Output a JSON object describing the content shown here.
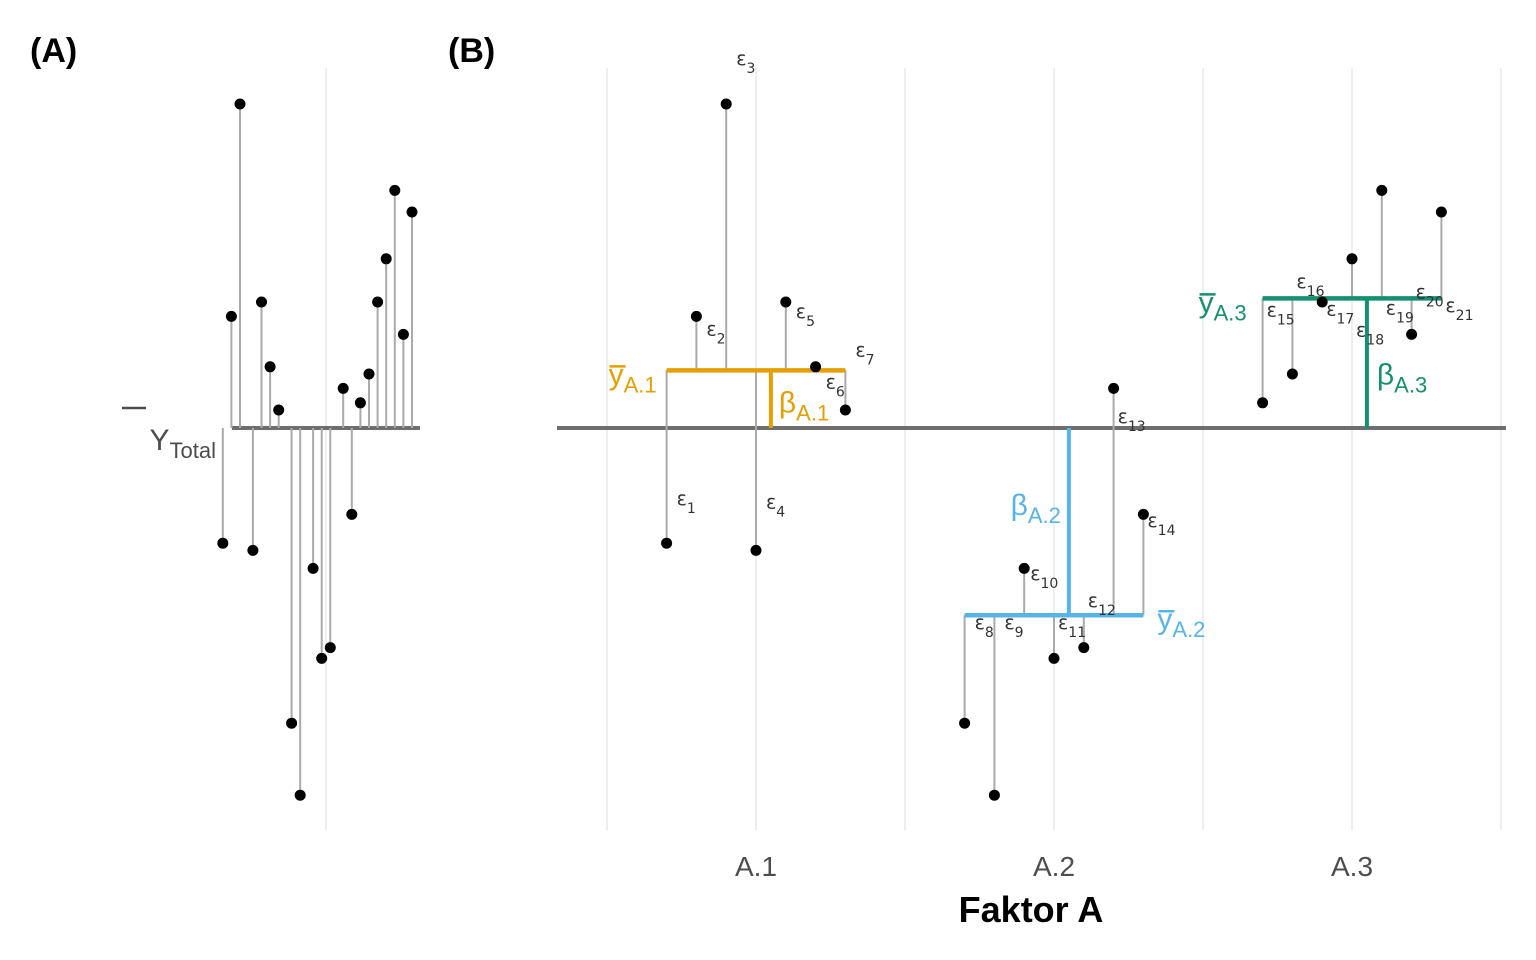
{
  "panels": {
    "a_label": "(A)",
    "b_label": "(B)"
  },
  "colors": {
    "stem": "#aaaaaa",
    "baseline": "#6e6e6e",
    "grid": "#e8e8e8",
    "point": "#000000",
    "A.1": "#e69f00",
    "A.2": "#56b4e9",
    "A.3": "#159070"
  },
  "chart_data": [
    {
      "panel": "A",
      "type": "scatter",
      "baseline_label": {
        "main": "Y",
        "sub": "Total"
      },
      "baseline_y": 0,
      "ylim": [
        -5.5,
        4.5
      ],
      "points": [
        {
          "x": -1.2,
          "y": -1.6
        },
        {
          "x": -1.1,
          "y": 1.55
        },
        {
          "x": -1.0,
          "y": 4.5
        },
        {
          "x": -0.85,
          "y": -1.7
        },
        {
          "x": -0.75,
          "y": 1.75
        },
        {
          "x": -0.65,
          "y": 0.85
        },
        {
          "x": -0.55,
          "y": 0.25
        },
        {
          "x": -0.4,
          "y": -4.1
        },
        {
          "x": -0.3,
          "y": -5.1
        },
        {
          "x": -0.15,
          "y": -1.95
        },
        {
          "x": -0.05,
          "y": -3.2
        },
        {
          "x": 0.05,
          "y": -3.05
        },
        {
          "x": 0.2,
          "y": 0.55
        },
        {
          "x": 0.3,
          "y": -1.2
        },
        {
          "x": 0.4,
          "y": 0.35
        },
        {
          "x": 0.5,
          "y": 0.75
        },
        {
          "x": 0.6,
          "y": 1.75
        },
        {
          "x": 0.7,
          "y": 2.35
        },
        {
          "x": 0.8,
          "y": 3.3
        },
        {
          "x": 0.9,
          "y": 1.3
        },
        {
          "x": 1.0,
          "y": 3.0
        }
      ]
    },
    {
      "panel": "B",
      "type": "scatter",
      "xlabel": "Faktor A",
      "categories": [
        "A.1",
        "A.2",
        "A.3"
      ],
      "baseline_y": 0,
      "ylim": [
        -5.5,
        4.5
      ],
      "groups": [
        {
          "name": "A.1",
          "mean_label": {
            "main": "y",
            "sub": "A.1"
          },
          "effect_label": {
            "main": "β",
            "sub": "A.1"
          },
          "mean": 0.8,
          "mean_x_range": [
            0.07,
            0.13
          ],
          "effect_x": 0.105,
          "points": [
            {
              "x": 0.07,
              "y": -1.6,
              "label": "ε",
              "sub": "1"
            },
            {
              "x": 0.08,
              "y": 1.55,
              "label": "ε",
              "sub": "2"
            },
            {
              "x": 0.09,
              "y": 4.5,
              "label": "ε",
              "sub": "3"
            },
            {
              "x": 0.1,
              "y": -1.7,
              "label": "ε",
              "sub": "4"
            },
            {
              "x": 0.11,
              "y": 1.75,
              "label": "ε",
              "sub": "5"
            },
            {
              "x": 0.12,
              "y": 0.85,
              "label": "ε",
              "sub": "6"
            },
            {
              "x": 0.13,
              "y": 0.25,
              "label": "ε",
              "sub": "7"
            }
          ]
        },
        {
          "name": "A.2",
          "mean_label": {
            "main": "y",
            "sub": "A.2"
          },
          "effect_label": {
            "main": "β",
            "sub": "A.2"
          },
          "mean": -2.6,
          "mean_x_range": [
            0.17,
            0.23
          ],
          "effect_x": 0.205,
          "points": [
            {
              "x": 0.17,
              "y": -4.1,
              "label": "ε",
              "sub": "8"
            },
            {
              "x": 0.18,
              "y": -5.1,
              "label": "ε",
              "sub": "9"
            },
            {
              "x": 0.19,
              "y": -1.95,
              "label": "ε",
              "sub": "10"
            },
            {
              "x": 0.2,
              "y": -3.2,
              "label": "ε",
              "sub": "11"
            },
            {
              "x": 0.21,
              "y": -3.05,
              "label": "ε",
              "sub": "12"
            },
            {
              "x": 0.22,
              "y": 0.55,
              "label": "ε",
              "sub": "13"
            },
            {
              "x": 0.23,
              "y": -1.2,
              "label": "ε",
              "sub": "14"
            }
          ]
        },
        {
          "name": "A.3",
          "mean_label": {
            "main": "y",
            "sub": "A.3"
          },
          "effect_label": {
            "main": "β",
            "sub": "A.3"
          },
          "mean": 1.8,
          "mean_x_range": [
            0.27,
            0.33
          ],
          "effect_x": 0.305,
          "points": [
            {
              "x": 0.27,
              "y": 0.35,
              "label": "ε",
              "sub": "15"
            },
            {
              "x": 0.28,
              "y": 0.75,
              "label": "ε",
              "sub": "16"
            },
            {
              "x": 0.29,
              "y": 1.75,
              "label": "ε",
              "sub": "17"
            },
            {
              "x": 0.3,
              "y": 2.35,
              "label": "ε",
              "sub": "18"
            },
            {
              "x": 0.31,
              "y": 3.3,
              "label": "ε",
              "sub": "19"
            },
            {
              "x": 0.32,
              "y": 1.3,
              "label": "ε",
              "sub": "20"
            },
            {
              "x": 0.33,
              "y": 3.0,
              "label": "ε",
              "sub": "21"
            }
          ]
        }
      ]
    }
  ]
}
